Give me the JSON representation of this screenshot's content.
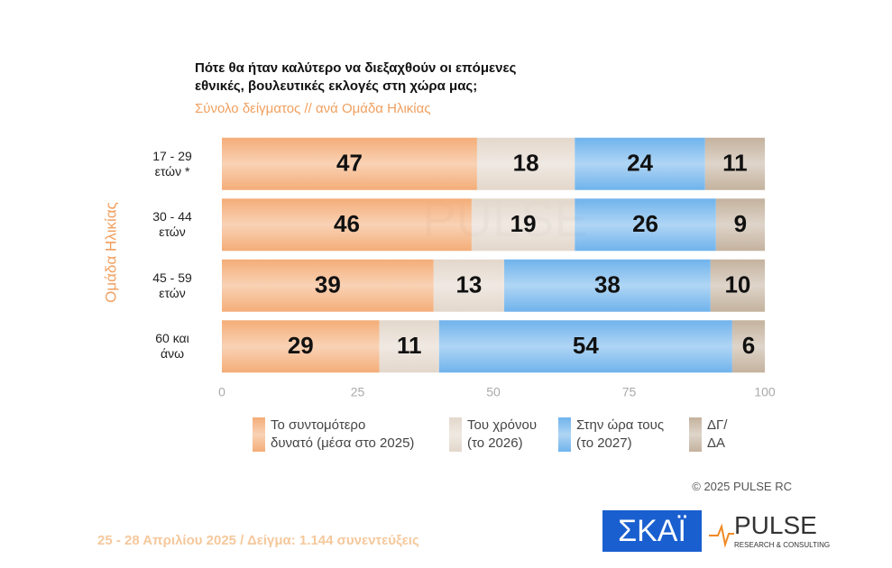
{
  "chart_data": {
    "type": "stacked_barh",
    "title": "Πότε θα ήταν καλύτερο να διεξαχθούν οι επόμενες\nεθνικές, βουλευτικές εκλογές στη χώρα μας;",
    "subtitle": "Σύνολο δείγματος // ανά Ομάδα Ηλικίας",
    "y_label": "Ομάδα Ηλικίας",
    "categories": [
      "17 - 29\nετών *",
      "30 - 44\nετών",
      "45 - 59\nετών",
      "60 και\nάνω"
    ],
    "series": [
      {
        "name": "Το συντομότερο\nδυνατό (μέσα στο 2025)",
        "color": "#f4ad78",
        "values": [
          47,
          46,
          39,
          29
        ]
      },
      {
        "name": "Του χρόνου\n(το 2026)",
        "color": "#e3d7cb",
        "values": [
          18,
          19,
          13,
          11
        ]
      },
      {
        "name": "Στην ώρα τους\n(το 2027)",
        "color": "#6fb3ec",
        "values": [
          24,
          26,
          38,
          54
        ]
      },
      {
        "name": "ΔΓ/\nΔΑ",
        "color": "#c4b29e",
        "values": [
          11,
          9,
          10,
          6
        ]
      }
    ],
    "xlim": [
      0,
      100
    ],
    "xticks": [
      0,
      25,
      50,
      75,
      100
    ],
    "footer": "25 - 28 Απριλίου 2025  /  Δείγμα:  1.144 συνεντεύξεις",
    "copyright": "©  2025  PULSE RC",
    "logos": [
      "ΣΚΑΪ",
      "PULSE",
      "RESEARCH & CONSULTING"
    ]
  }
}
